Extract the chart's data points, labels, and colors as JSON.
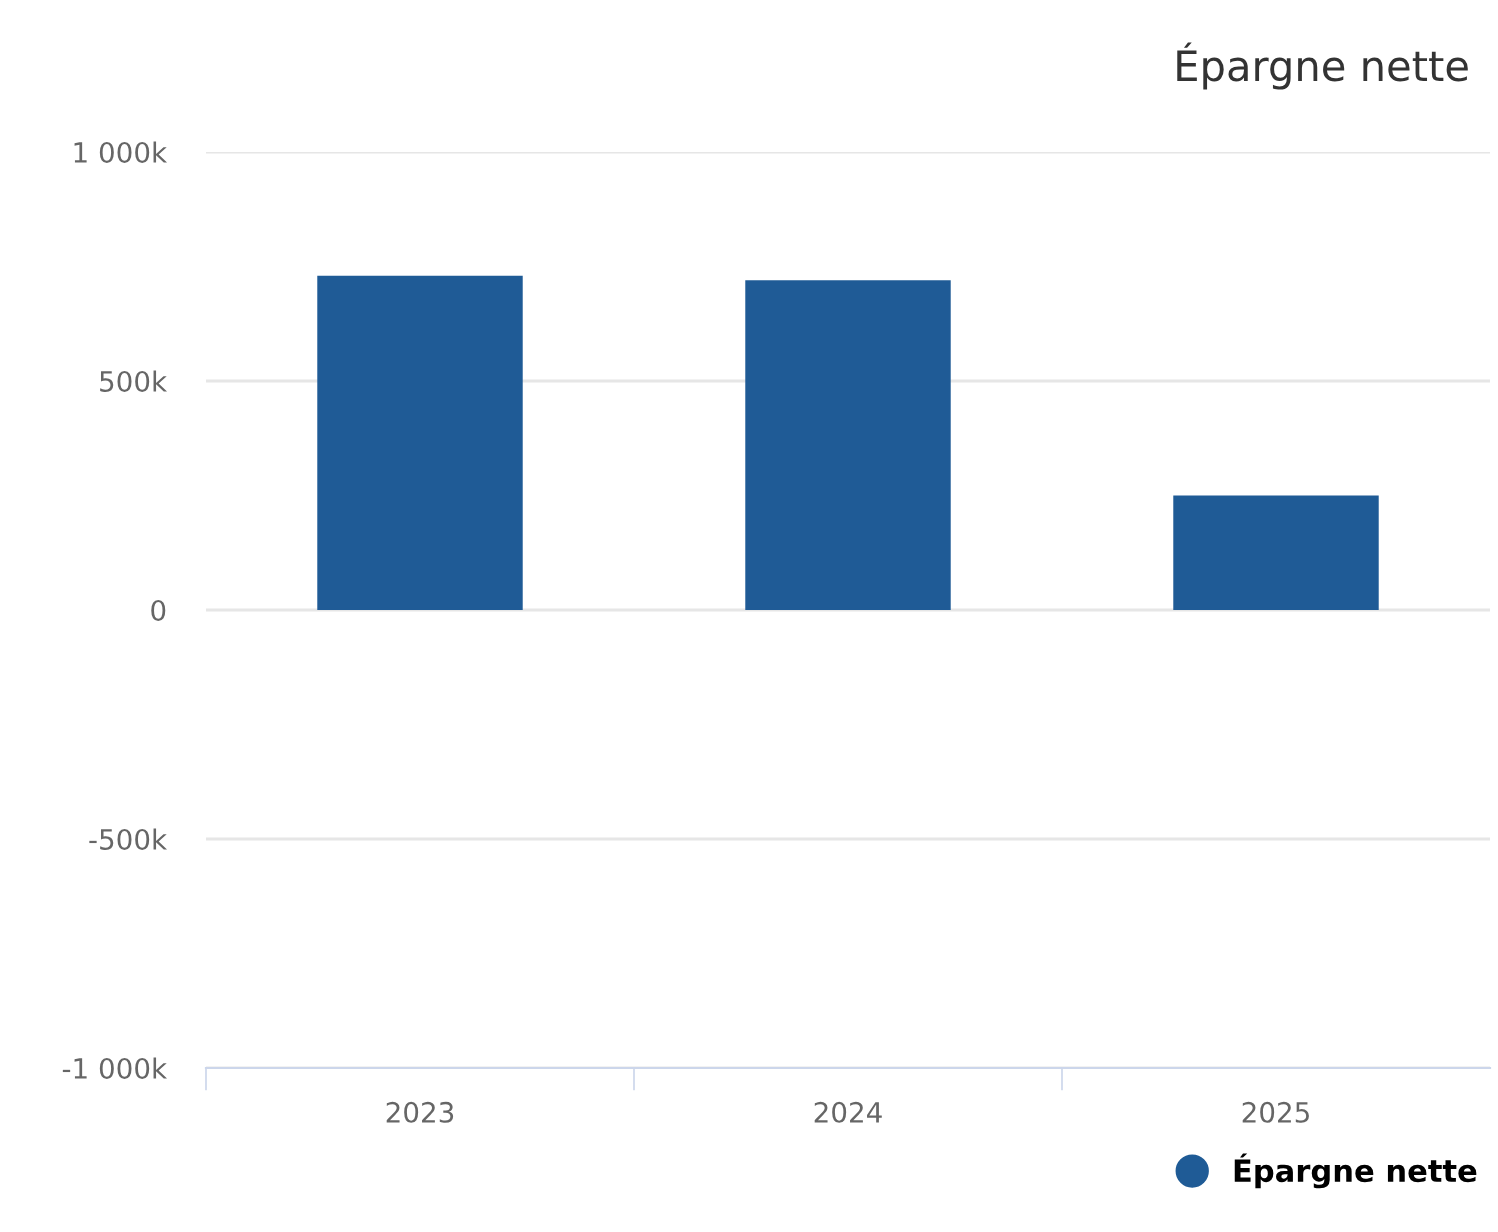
{
  "chart_data": {
    "type": "bar",
    "title": "Épargne nette",
    "categories": [
      "2023",
      "2024",
      "2025"
    ],
    "series": [
      {
        "name": "Épargne nette",
        "color": "#1f5b96",
        "values": [
          730000,
          720000,
          250000
        ]
      }
    ],
    "ylim": [
      -1000000,
      1000000
    ],
    "yticks": [
      {
        "value": -1000000,
        "label": "-1 000k"
      },
      {
        "value": -500000,
        "label": "-500k"
      },
      0,
      {
        "value": 500000,
        "label": "500k"
      },
      {
        "value": 1000000,
        "label": "1 000k"
      }
    ],
    "grid": "y",
    "legend": "bottom right"
  }
}
